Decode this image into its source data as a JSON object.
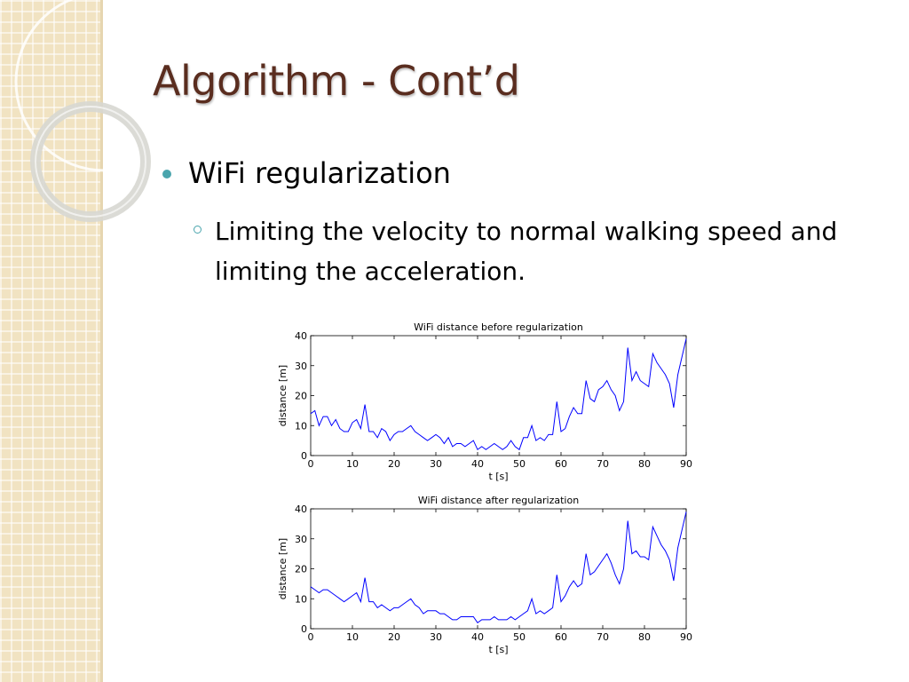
{
  "slide": {
    "title": "Algorithm - Cont’d",
    "bullet": "WiFi regularization",
    "sub_bullet": "Limiting the velocity to normal walking speed and limiting the acceleration.",
    "accent_color": "#4aa5ad",
    "title_color": "#5a2d1f"
  },
  "chart_data": [
    {
      "type": "line",
      "title": "WiFi distance before regularization",
      "xlabel": "t [s]",
      "ylabel": "distance [m]",
      "xlim": [
        0,
        90
      ],
      "ylim": [
        0,
        40
      ],
      "xticks": [
        0,
        10,
        20,
        30,
        40,
        50,
        60,
        70,
        80,
        90
      ],
      "yticks": [
        0,
        10,
        20,
        30,
        40
      ],
      "grid": false,
      "series": [
        {
          "color": "#0000ff",
          "x": [
            0,
            1,
            2,
            3,
            4,
            5,
            6,
            7,
            8,
            9,
            10,
            11,
            12,
            13,
            14,
            15,
            16,
            17,
            18,
            19,
            20,
            21,
            22,
            23,
            24,
            25,
            26,
            27,
            28,
            29,
            30,
            31,
            32,
            33,
            34,
            35,
            36,
            37,
            38,
            39,
            40,
            41,
            42,
            43,
            44,
            45,
            46,
            47,
            48,
            49,
            50,
            51,
            52,
            53,
            54,
            55,
            56,
            57,
            58,
            59,
            60,
            61,
            62,
            63,
            64,
            65,
            66,
            67,
            68,
            69,
            70,
            71,
            72,
            73,
            74,
            75,
            76,
            77,
            78,
            79,
            80,
            81,
            82,
            83,
            84,
            85,
            86,
            87,
            88,
            89,
            90
          ],
          "y": [
            14,
            15,
            10,
            13,
            13,
            10,
            12,
            9,
            8,
            8,
            11,
            12,
            9,
            17,
            8,
            8,
            6,
            9,
            8,
            5,
            7,
            8,
            8,
            9,
            10,
            8,
            7,
            6,
            5,
            6,
            7,
            6,
            4,
            6,
            3,
            4,
            4,
            3,
            4,
            5,
            2,
            3,
            2,
            3,
            4,
            3,
            2,
            3,
            5,
            3,
            2,
            6,
            6,
            10,
            5,
            6,
            5,
            7,
            7,
            18,
            8,
            9,
            13,
            16,
            14,
            14,
            25,
            19,
            18,
            22,
            23,
            25,
            22,
            20,
            15,
            18,
            36,
            25,
            28,
            25,
            24,
            23,
            34,
            31,
            29,
            27,
            24,
            16,
            27,
            33,
            39
          ]
        }
      ]
    },
    {
      "type": "line",
      "title": "WiFi distance after regularization",
      "xlabel": "t [s]",
      "ylabel": "distance [m]",
      "xlim": [
        0,
        90
      ],
      "ylim": [
        0,
        40
      ],
      "xticks": [
        0,
        10,
        20,
        30,
        40,
        50,
        60,
        70,
        80,
        90
      ],
      "yticks": [
        0,
        10,
        20,
        30,
        40
      ],
      "grid": false,
      "series": [
        {
          "color": "#0000ff",
          "x": [
            0,
            1,
            2,
            3,
            4,
            5,
            6,
            7,
            8,
            9,
            10,
            11,
            12,
            13,
            14,
            15,
            16,
            17,
            18,
            19,
            20,
            21,
            22,
            23,
            24,
            25,
            26,
            27,
            28,
            29,
            30,
            31,
            32,
            33,
            34,
            35,
            36,
            37,
            38,
            39,
            40,
            41,
            42,
            43,
            44,
            45,
            46,
            47,
            48,
            49,
            50,
            51,
            52,
            53,
            54,
            55,
            56,
            57,
            58,
            59,
            60,
            61,
            62,
            63,
            64,
            65,
            66,
            67,
            68,
            69,
            70,
            71,
            72,
            73,
            74,
            75,
            76,
            77,
            78,
            79,
            80,
            81,
            82,
            83,
            84,
            85,
            86,
            87,
            88,
            89,
            90
          ],
          "y": [
            14,
            13,
            12,
            13,
            13,
            12,
            11,
            10,
            9,
            10,
            11,
            12,
            9,
            17,
            9,
            9,
            7,
            8,
            7,
            6,
            7,
            7,
            8,
            9,
            10,
            8,
            7,
            5,
            6,
            6,
            6,
            5,
            5,
            4,
            3,
            3,
            4,
            4,
            4,
            4,
            2,
            3,
            3,
            3,
            4,
            3,
            3,
            3,
            4,
            3,
            4,
            5,
            6,
            10,
            5,
            6,
            5,
            6,
            7,
            18,
            9,
            11,
            14,
            16,
            14,
            15,
            25,
            18,
            19,
            21,
            23,
            25,
            22,
            18,
            15,
            20,
            36,
            25,
            26,
            24,
            24,
            23,
            34,
            31,
            28,
            26,
            23,
            16,
            27,
            33,
            39
          ]
        }
      ]
    }
  ]
}
